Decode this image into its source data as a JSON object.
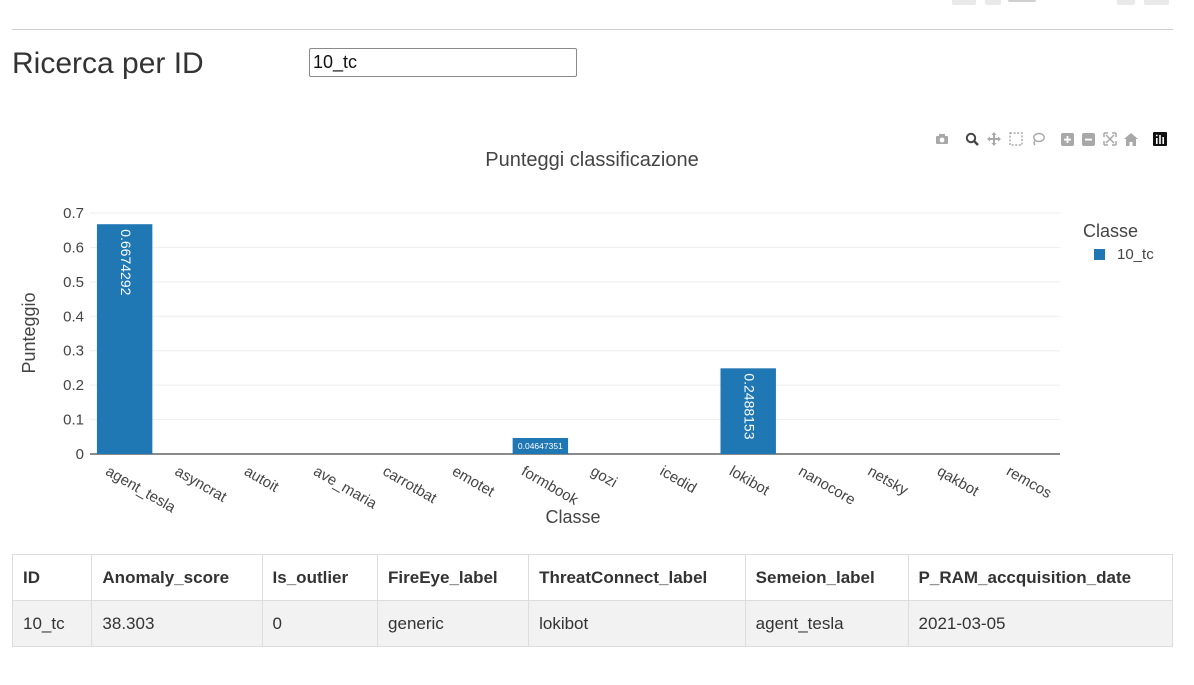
{
  "header": {
    "title": "Ricerca per ID"
  },
  "search": {
    "value": "10_tc"
  },
  "toolbar": {
    "icons": [
      "camera-icon",
      "zoom-icon",
      "pan-icon",
      "box-select-icon",
      "lasso-icon",
      "zoom-in-icon",
      "zoom-out-icon",
      "autoscale-icon",
      "reset-axes-icon",
      "plotly-logo-icon"
    ]
  },
  "chart_data": {
    "type": "bar",
    "title": "Punteggi classificazione",
    "xlabel": "Classe",
    "ylabel": "Punteggio",
    "categories": [
      "agent_tesla",
      "asyncrat",
      "autoit",
      "ave_maria",
      "carrotbat",
      "emotet",
      "formbook",
      "gozi",
      "icedid",
      "lokibot",
      "nanocore",
      "netsky",
      "qakbot",
      "remcos"
    ],
    "series": [
      {
        "name": "10_tc",
        "color": "#1f77b4",
        "values": [
          0.6674292,
          0,
          0,
          0,
          0,
          0,
          0.04647351,
          0,
          0,
          0.2488153,
          0,
          0,
          0,
          0
        ],
        "labels": [
          "0.6674292",
          "",
          "",
          "",
          "",
          "",
          "0.04647351",
          "",
          "",
          "0.2488153",
          "",
          "",
          "",
          ""
        ]
      }
    ],
    "ylim": [
      0,
      0.7
    ],
    "yticks": [
      "0",
      "0.1",
      "0.2",
      "0.3",
      "0.4",
      "0.5",
      "0.6",
      "0.7"
    ],
    "grid": true,
    "legend": {
      "title": "Classe",
      "placement": "right"
    }
  },
  "table": {
    "headers": [
      "ID",
      "Anomaly_score",
      "Is_outlier",
      "FireEye_label",
      "ThreatConnect_label",
      "Semeion_label",
      "P_RAM_accquisition_date"
    ],
    "rows": [
      [
        "10_tc",
        "38.303",
        "0",
        "generic",
        "lokibot",
        "agent_tesla",
        "2021-03-05"
      ]
    ]
  }
}
